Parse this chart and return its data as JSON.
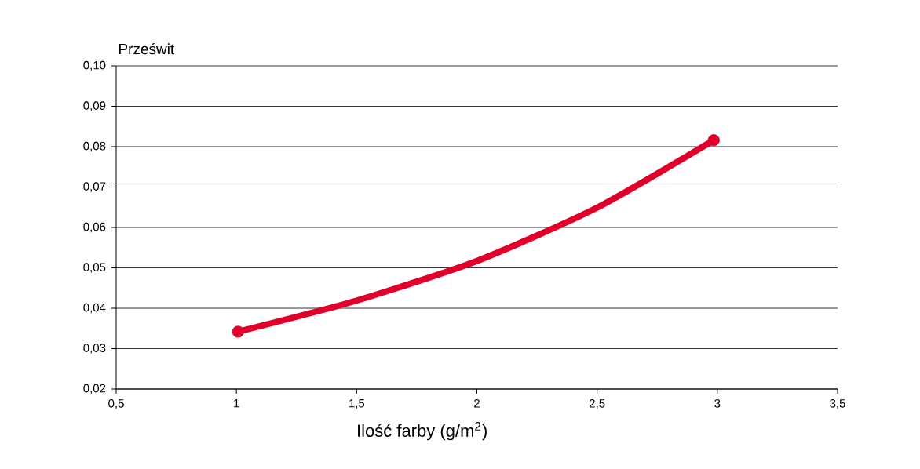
{
  "chart_data": {
    "type": "line",
    "ylabel": "Prześwit",
    "xlabel": "Ilość farby  (g/m$^{2}$)",
    "xlim": [
      0.5,
      3.5
    ],
    "ylim": [
      0.02,
      0.1
    ],
    "xticks": [
      {
        "value": 0.5,
        "label": "0,5"
      },
      1,
      {
        "value": 1.5,
        "label": "1,5"
      },
      2,
      {
        "value": 2.5,
        "label": "2,5"
      },
      3,
      {
        "value": 3.5,
        "label": "3,5"
      }
    ],
    "yticks": [
      {
        "value": 0.02,
        "label": "0,02"
      },
      {
        "value": 0.03,
        "label": "0,03"
      },
      {
        "value": 0.04,
        "label": "0,04"
      },
      {
        "value": 0.05,
        "label": "0,05"
      },
      {
        "value": 0.06,
        "label": "0,06"
      },
      {
        "value": 0.07,
        "label": "0,07"
      },
      {
        "value": 0.08,
        "label": "0,08"
      },
      {
        "value": 0.09,
        "label": "0,09"
      },
      {
        "value": 0.1,
        "label": "0,10"
      }
    ],
    "grid": "y",
    "series": [
      {
        "color": "#e0002a",
        "marker": "none",
        "x": [
          1.007,
          1.5,
          2,
          2.5,
          2.985
        ],
        "values": [
          0.0342,
          0.0419,
          0.0517,
          0.0649,
          0.0816
        ]
      },
      {
        "type": "scatter",
        "color": "#e0002a",
        "marker": "circle",
        "x": [
          1.007,
          2.985
        ],
        "values": [
          0.0342,
          0.0816
        ]
      }
    ]
  }
}
